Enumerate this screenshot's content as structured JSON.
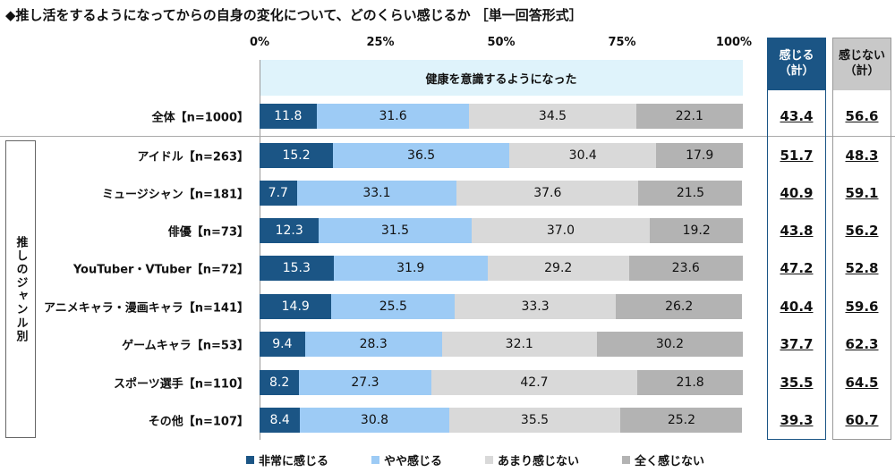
{
  "chart_data": {
    "type": "bar",
    "orientation": "horizontal-stacked-100",
    "title": "◆推し活をするようになってからの自身の変化について、どのくらい感じるか ［単一回答形式］",
    "subtitle": "健康を意識するようになった",
    "xticks": [
      "0%",
      "25%",
      "50%",
      "75%",
      "100%"
    ],
    "xlim": [
      0,
      100
    ],
    "group_label": "推しのジャンル別",
    "categories": [
      "全体【n=1000】",
      "アイドル【n=263】",
      "ミュージシャン【n=181】",
      "俳優【n=73】",
      "YouTuber・VTuber【n=72】",
      "アニメキャラ・漫画キャラ【n=141】",
      "ゲームキャラ【n=53】",
      "スポーツ選手【n=110】",
      "その他【n=107】"
    ],
    "series": [
      {
        "name": "非常に感じる",
        "color": "#1b5585",
        "values": [
          11.8,
          15.2,
          7.7,
          12.3,
          15.3,
          14.9,
          9.4,
          8.2,
          8.4
        ]
      },
      {
        "name": "やや感じる",
        "color": "#9dcbf5",
        "values": [
          31.6,
          36.5,
          33.1,
          31.5,
          31.9,
          25.5,
          28.3,
          27.3,
          30.8
        ]
      },
      {
        "name": "あまり感じない",
        "color": "#d9d9d9",
        "values": [
          34.5,
          30.4,
          37.6,
          37.0,
          29.2,
          33.3,
          32.1,
          42.7,
          35.5
        ]
      },
      {
        "name": "全く感じない",
        "color": "#b3b3b3",
        "values": [
          22.1,
          17.9,
          21.5,
          19.2,
          23.6,
          26.2,
          30.2,
          21.8,
          25.2
        ]
      }
    ],
    "totals": [
      {
        "header": "感じる\n（計）",
        "color": "#1b5585",
        "values": [
          "43.4",
          "51.7",
          "40.9",
          "43.8",
          "47.2",
          "40.4",
          "37.7",
          "35.5",
          "39.3"
        ]
      },
      {
        "header": "感じない\n（計）",
        "color": "#c8c8c8",
        "values": [
          "56.6",
          "48.3",
          "59.1",
          "56.2",
          "52.8",
          "59.6",
          "62.3",
          "64.5",
          "60.7"
        ]
      }
    ]
  }
}
